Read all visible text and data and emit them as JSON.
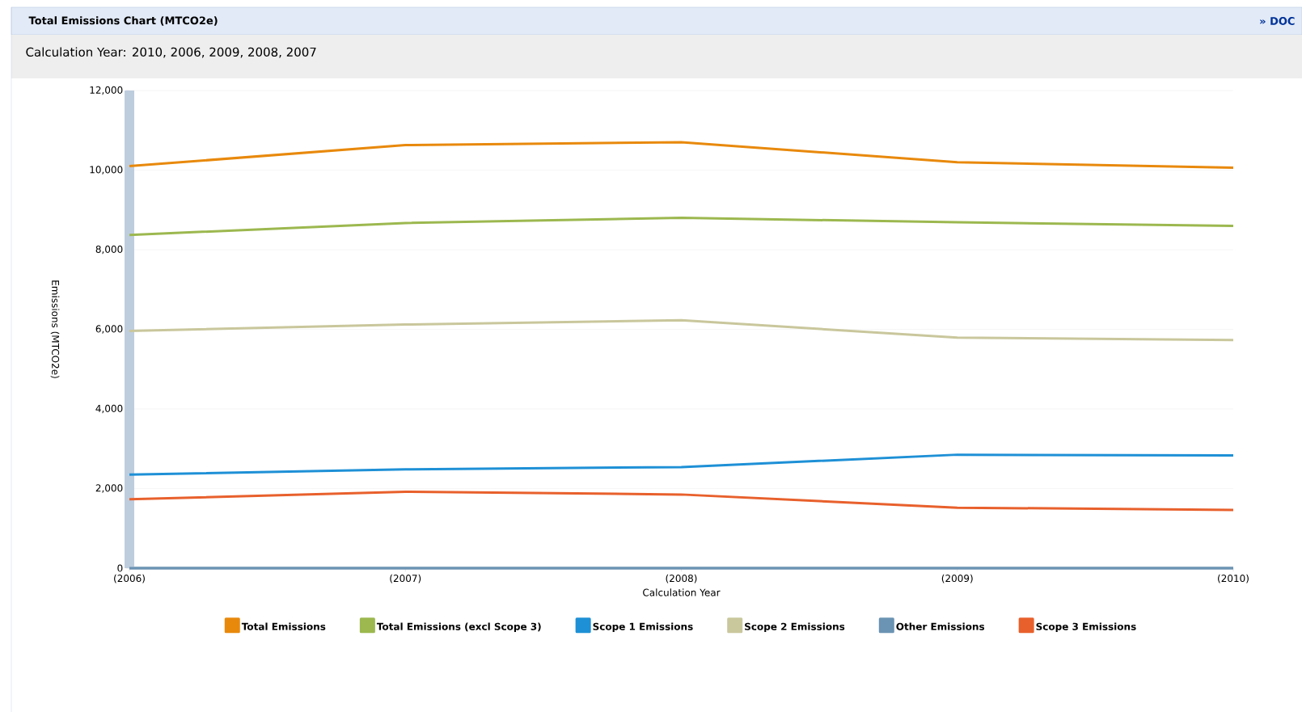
{
  "chart_data": {
    "type": "line",
    "title": "Total Emissions Chart (MTCO2e)",
    "subtitle": "Calculation Year: 2010, 2006, 2009, 2008, 2007",
    "xlabel": "Calculation Year",
    "ylabel": "Emissions (MTCO2e)",
    "categories": [
      "(2006)",
      "(2007)",
      "(2008)",
      "(2009)",
      "(2010)"
    ],
    "series": [
      {
        "name": "Total Emissions",
        "color": "#e8890c",
        "values": [
          10100,
          10630,
          10700,
          10200,
          10060
        ]
      },
      {
        "name": "Total Emissions (excl Scope 3)",
        "color": "#9cb84f",
        "values": [
          8370,
          8670,
          8800,
          8690,
          8600
        ]
      },
      {
        "name": "Scope 1 Emissions",
        "color": "#1e90d6",
        "values": [
          2350,
          2480,
          2540,
          2850,
          2830
        ]
      },
      {
        "name": "Scope 2 Emissions",
        "color": "#c9c79c",
        "values": [
          5960,
          6120,
          6230,
          5790,
          5730
        ]
      },
      {
        "name": "Other Emissions",
        "color": "#6b93b3",
        "values": [
          0,
          0,
          0,
          0,
          0
        ]
      },
      {
        "name": "Scope 3 Emissions",
        "color": "#e8602c",
        "values": [
          1730,
          1920,
          1850,
          1520,
          1460
        ]
      }
    ],
    "ylim": [
      0,
      12000
    ],
    "yticks": [
      0,
      {
        "value": 2000,
        "label": "2,000"
      },
      {
        "value": 4000,
        "label": "4,000"
      },
      {
        "value": 6000,
        "label": "6,000"
      },
      {
        "value": 8000,
        "label": "8,000"
      },
      {
        "value": 10000,
        "label": "10,000"
      },
      {
        "value": 12000,
        "label": "12,000"
      }
    ],
    "grid": "y",
    "legend": "bottom",
    "line_style": "solid",
    "annotations": [
      "» DOC"
    ]
  }
}
